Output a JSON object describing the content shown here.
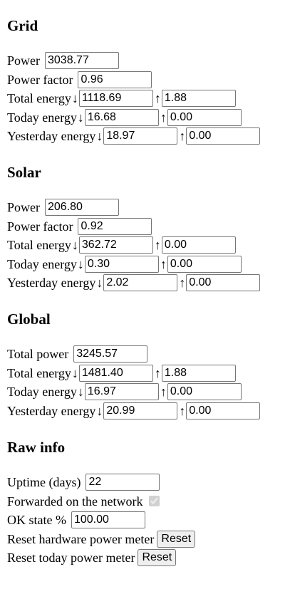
{
  "grid": {
    "title": "Grid",
    "power_label": "Power",
    "power": "3038.77",
    "power_factor_label": "Power factor",
    "power_factor": "0.96",
    "total_energy_label": "Total energy",
    "total_in": "1118.69",
    "total_out": "1.88",
    "today_energy_label": "Today energy",
    "today_in": "16.68",
    "today_out": "0.00",
    "yesterday_energy_label": "Yesterday energy",
    "yesterday_in": "18.97",
    "yesterday_out": "0.00"
  },
  "solar": {
    "title": "Solar",
    "power_label": "Power",
    "power": "206.80",
    "power_factor_label": "Power factor",
    "power_factor": "0.92",
    "total_energy_label": "Total energy",
    "total_in": "362.72",
    "total_out": "0.00",
    "today_energy_label": "Today energy",
    "today_in": "0.30",
    "today_out": "0.00",
    "yesterday_energy_label": "Yesterday energy",
    "yesterday_in": "2.02",
    "yesterday_out": "0.00"
  },
  "global": {
    "title": "Global",
    "total_power_label": "Total power",
    "total_power": "3245.57",
    "total_energy_label": "Total energy",
    "total_in": "1481.40",
    "total_out": "1.88",
    "today_energy_label": "Today energy",
    "today_in": "16.97",
    "today_out": "0.00",
    "yesterday_energy_label": "Yesterday energy",
    "yesterday_in": "20.99",
    "yesterday_out": "0.00"
  },
  "raw": {
    "title": "Raw info",
    "uptime_label": "Uptime (days)",
    "uptime": "22",
    "forwarded_label": "Forwarded on the network",
    "forwarded_checked": true,
    "ok_state_label": "OK state %",
    "ok_state": "100.00",
    "reset_hw_label": "Reset hardware power meter",
    "reset_today_label": "Reset today power meter",
    "reset_button_label": "Reset"
  },
  "symbols": {
    "in_arrow": "↓",
    "out_arrow": "↑"
  }
}
